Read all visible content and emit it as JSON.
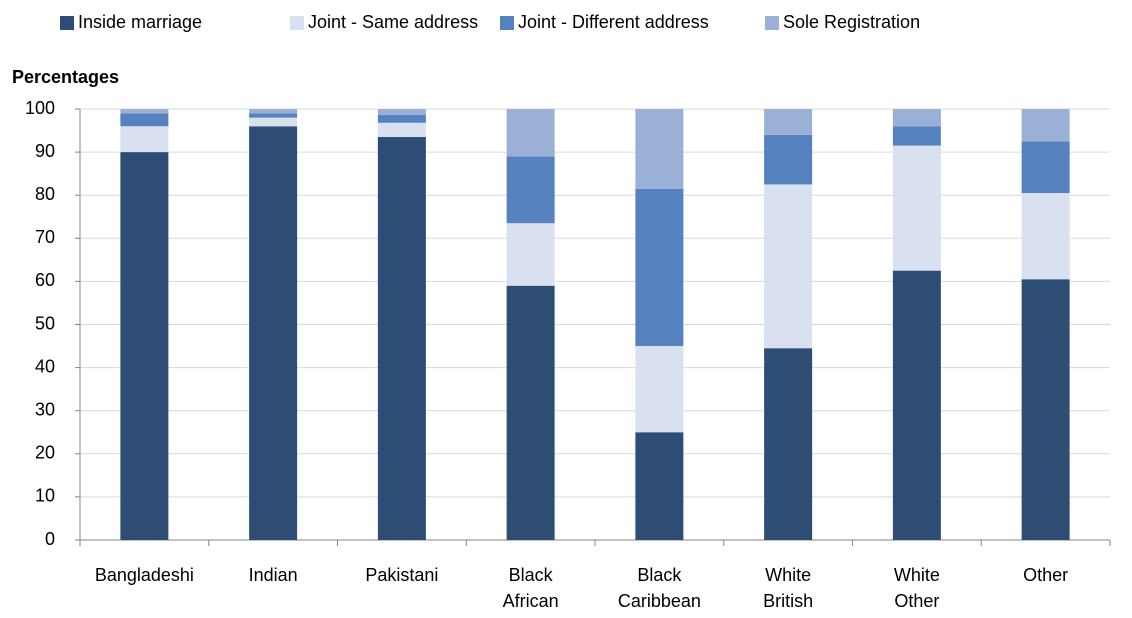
{
  "chart_data": {
    "type": "stacked_bar",
    "y_label": "Percentages",
    "categories": [
      "Bangladeshi",
      "Indian",
      "Pakistani",
      "Black African",
      "Black Caribbean",
      "White British",
      "White Other",
      "Other"
    ],
    "series": [
      {
        "name": "Inside marriage",
        "color": "#2e4d74",
        "values": [
          90,
          96,
          93.5,
          59,
          25,
          44.5,
          62.5,
          60.5
        ]
      },
      {
        "name": "Joint - Same address",
        "color": "#d9e1f0",
        "values": [
          6,
          2,
          3.3,
          14.5,
          20,
          38,
          29,
          20
        ]
      },
      {
        "name": "Joint - Different address",
        "color": "#5582be",
        "values": [
          3,
          1,
          1.8,
          15.5,
          36.5,
          11.5,
          4.5,
          12
        ]
      },
      {
        "name": "Sole Registration",
        "color": "#9ab0d6",
        "values": [
          1,
          1,
          1.4,
          11,
          18.5,
          6,
          4,
          7.5
        ]
      }
    ],
    "ylim": [
      0,
      100
    ],
    "yticks": [
      0,
      10,
      20,
      30,
      40,
      50,
      60,
      70,
      80,
      90,
      100
    ],
    "grid": true
  }
}
